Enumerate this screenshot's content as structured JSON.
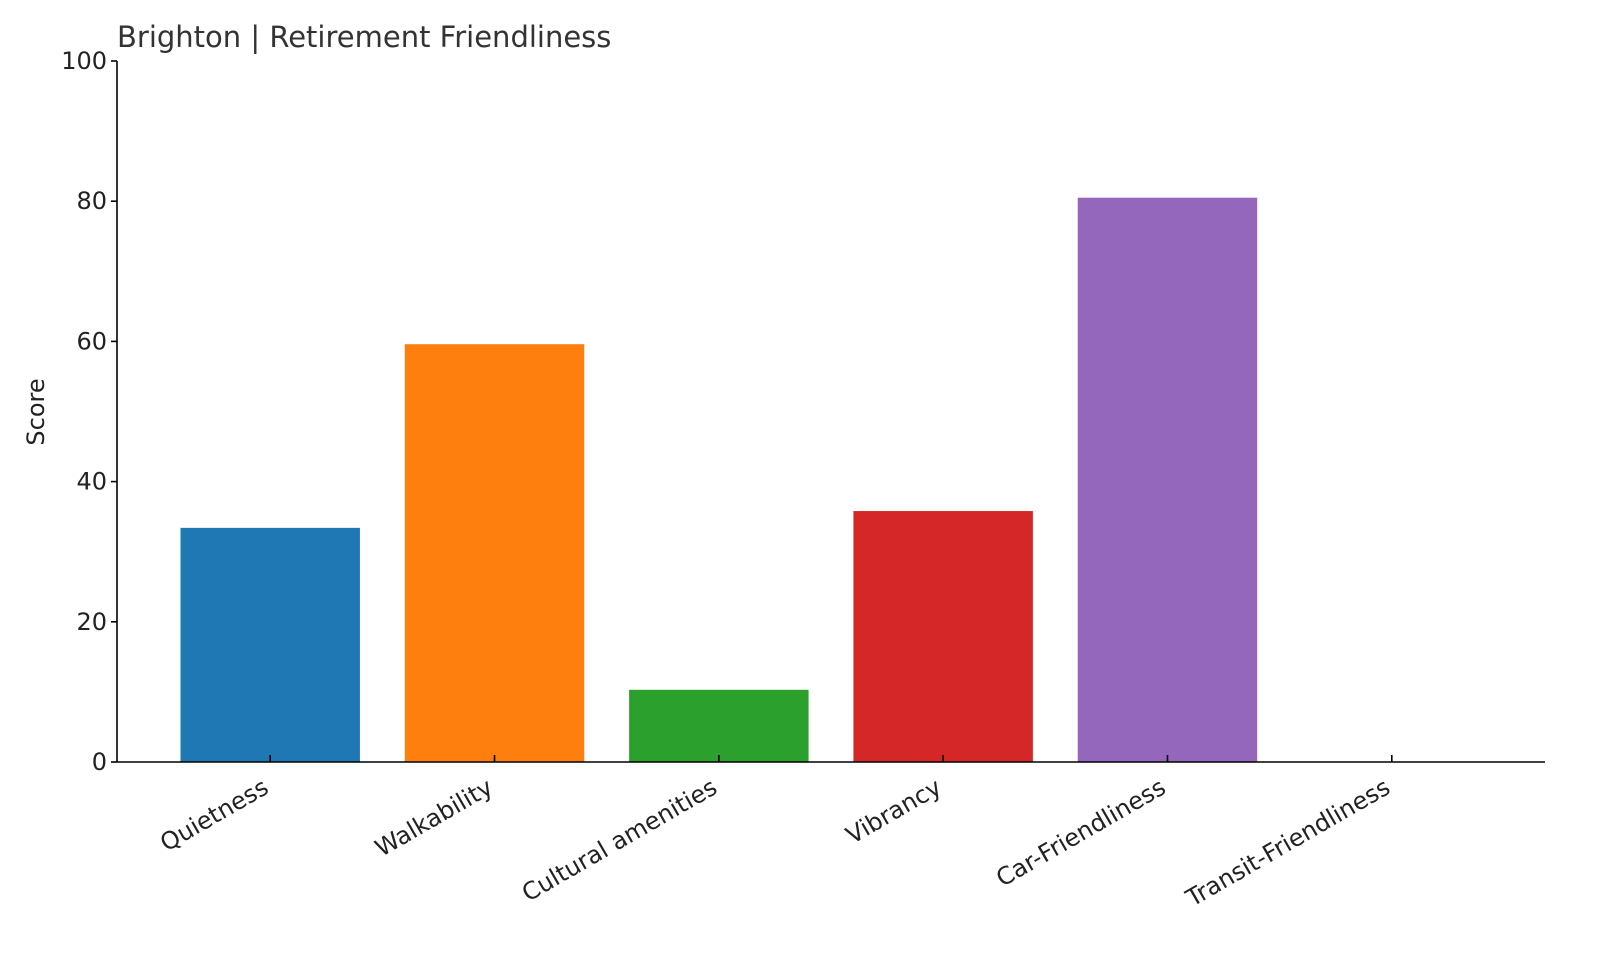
{
  "chart_data": {
    "type": "bar",
    "title": "Brighton | Retirement Friendliness",
    "y_label": "Score",
    "categories": [
      "Quietness",
      "Walkability",
      "Cultural amenities",
      "Vibrancy",
      "Car-Friendliness",
      "Transit-Friendliness"
    ],
    "values": [
      33.4,
      59.6,
      10.3,
      35.8,
      80.5,
      0
    ],
    "colors": [
      "#1f77b4",
      "#ff7f0e",
      "#2ca02c",
      "#d62728",
      "#9467bd",
      "#8c564b"
    ],
    "ylim": [
      0,
      100
    ],
    "yticks": [
      0,
      20,
      40,
      60,
      80,
      100
    ],
    "grid": false
  }
}
